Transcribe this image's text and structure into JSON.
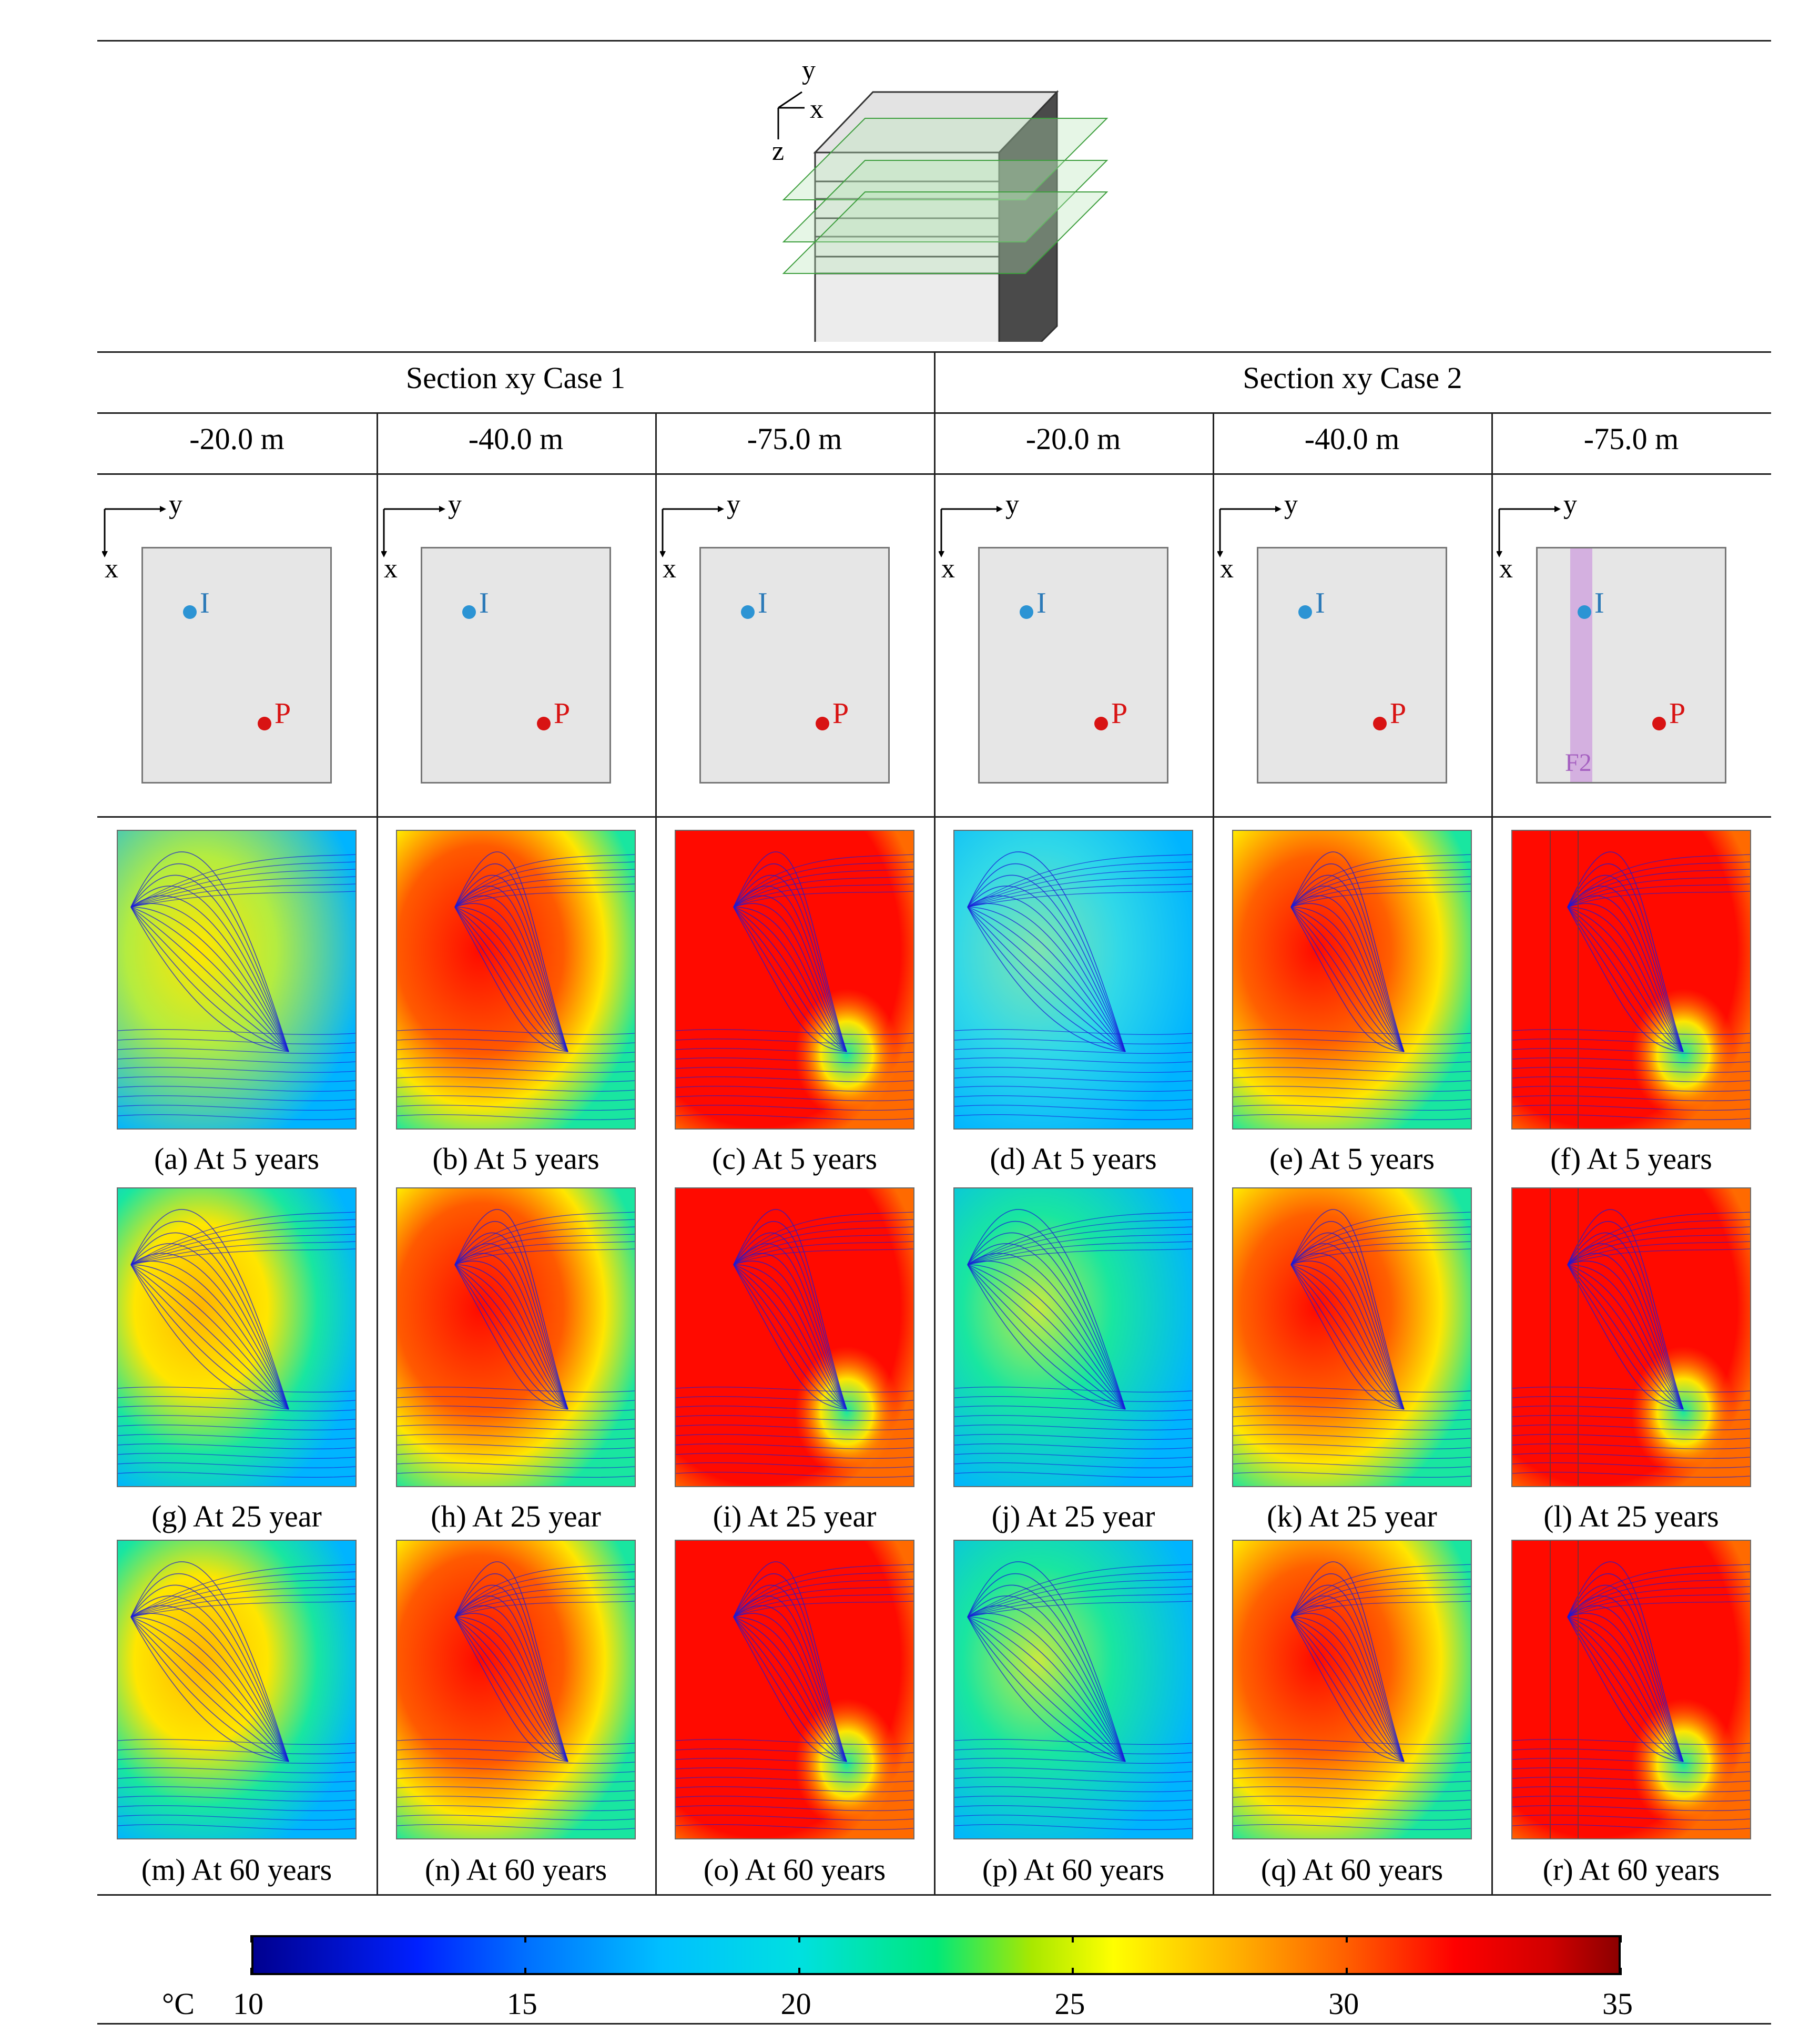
{
  "header": {
    "case1_title": "Section xy Case 1",
    "case2_title": "Section xy Case 2"
  },
  "iso_axes": {
    "y": "y",
    "x": "x",
    "z": "z"
  },
  "depths": [
    "-20.0 m",
    "-40.0 m",
    "-75.0 m",
    "-20.0 m",
    "-40.0 m",
    "-75.0 m"
  ],
  "schematic": {
    "axis_y": "y",
    "axis_x": "x",
    "injection_label": "I",
    "production_label": "P",
    "fault_label": "F2"
  },
  "captions": [
    [
      "(a) At 5 years",
      "(b) At 5 years",
      "(c) At 5 years",
      "(d) At 5 years",
      "(e) At 5 years",
      "(f) At 5 years"
    ],
    [
      "(g) At 25 year",
      "(h) At 25 year",
      "(i) At 25 year",
      "(j) At 25 year",
      "(k) At 25 year",
      "(l) At 25 years"
    ],
    [
      "(m) At 60 years",
      "(n) At 60 years",
      "(o) At 60 years",
      "(p) At 60 years",
      "(q) At 60 years",
      "(r) At 60 years"
    ]
  ],
  "colorbar": {
    "unit": "°C",
    "ticks": [
      "10",
      "15",
      "20",
      "25",
      "30",
      "35"
    ],
    "min": 10,
    "max": 35
  },
  "colors": {
    "cold": "#00b4ff",
    "mid": "#19e6a0",
    "warm": "#ffe600",
    "hot": "#ff0a00",
    "streamline": "#1a1ad8",
    "injection": "#2c94d4",
    "production": "#d81313",
    "fault": "#cfa3de"
  }
}
